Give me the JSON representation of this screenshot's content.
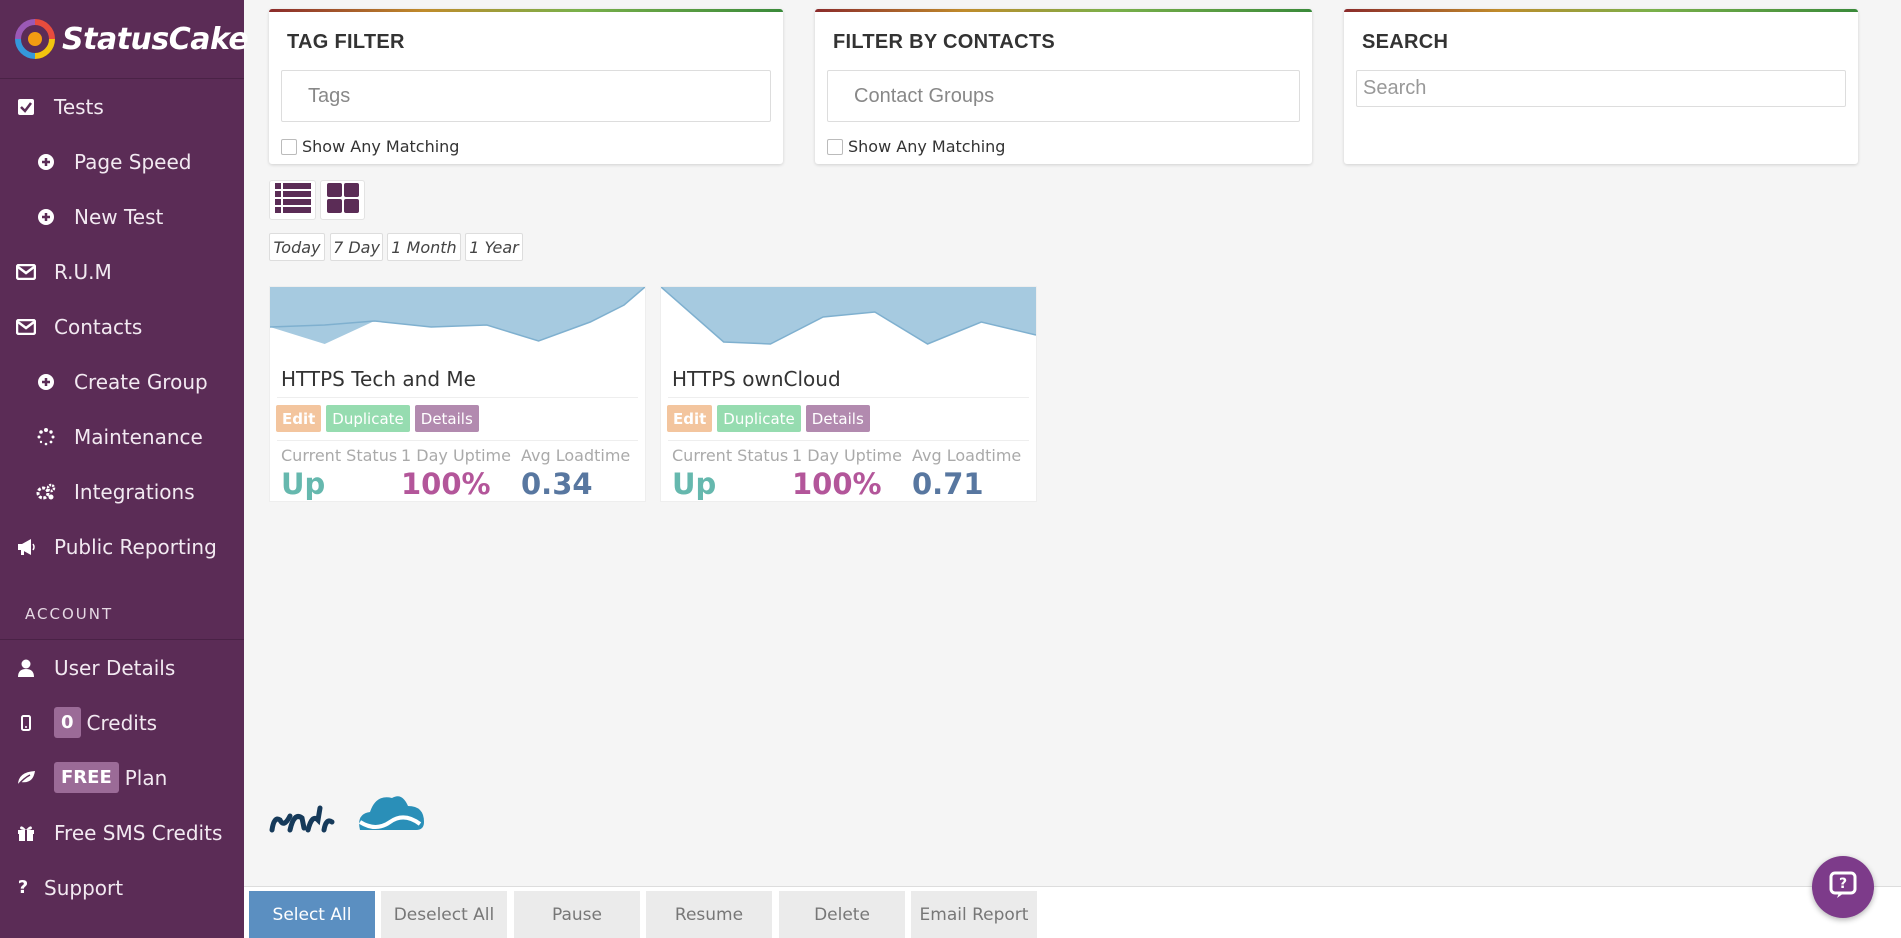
{
  "brand": {
    "name": "StatusCake"
  },
  "sidebar": {
    "items": [
      {
        "label": "Tests",
        "icon": "check-square-icon",
        "level": 0
      },
      {
        "label": "Page Speed",
        "icon": "plus-circle-icon",
        "level": 1
      },
      {
        "label": "New Test",
        "icon": "plus-circle-icon",
        "level": 1
      },
      {
        "label": "R.U.M",
        "icon": "envelope-icon",
        "level": 0
      },
      {
        "label": "Contacts",
        "icon": "envelope-icon",
        "level": 0
      },
      {
        "label": "Create Group",
        "icon": "plus-circle-icon",
        "level": 1
      },
      {
        "label": "Maintenance",
        "icon": "spinner-icon",
        "level": 1
      },
      {
        "label": "Integrations",
        "icon": "cogs-icon",
        "level": 1
      },
      {
        "label": "Public Reporting",
        "icon": "bullhorn-icon",
        "level": 0
      }
    ],
    "account_section": "ACCOUNT",
    "account_items": [
      {
        "label": "User Details",
        "icon": "user-icon"
      },
      {
        "label": "Credits",
        "badge": "0",
        "icon": "mobile-icon"
      },
      {
        "label": "Plan",
        "badge": "FREE",
        "icon": "leaf-icon"
      },
      {
        "label": "Free SMS Credits",
        "icon": "gift-icon"
      },
      {
        "label": "Support",
        "icon": "question-icon"
      }
    ]
  },
  "filters": {
    "tag": {
      "title": "TAG FILTER",
      "placeholder": "Tags",
      "checkbox_label": "Show Any Matching"
    },
    "contacts": {
      "title": "FILTER BY CONTACTS",
      "placeholder": "Contact Groups",
      "checkbox_label": "Show Any Matching"
    },
    "search": {
      "title": "SEARCH",
      "placeholder": "Search"
    }
  },
  "view_toggles": [
    "list-view-icon",
    "grid-view-icon"
  ],
  "ranges": [
    "Today",
    "7 Day",
    "1 Month",
    "1 Year"
  ],
  "tests": [
    {
      "name": "HTTPS Tech and Me",
      "actions": {
        "edit": "Edit",
        "duplicate": "Duplicate",
        "details": "Details"
      },
      "status_label": "Current Status",
      "status": "Up",
      "uptime_label": "1 Day Uptime",
      "uptime": "100%",
      "load_label": "Avg Loadtime",
      "load": "0.34"
    },
    {
      "name": "HTTPS ownCloud",
      "actions": {
        "edit": "Edit",
        "duplicate": "Duplicate",
        "details": "Details"
      },
      "status_label": "Current Status",
      "status": "Up",
      "uptime_label": "1 Day Uptime",
      "uptime": "100%",
      "load_label": "Avg Loadtime",
      "load": "0.71"
    }
  ],
  "bottom_bar": [
    "Select All",
    "Deselect All",
    "Pause",
    "Resume",
    "Delete",
    "Email Report"
  ],
  "colors": {
    "sidebar": "#5b2c56",
    "status_up": "#66b8ae",
    "uptime": "#b3569a",
    "loadtime": "#5877a0",
    "primary": "#5b8fc1"
  }
}
